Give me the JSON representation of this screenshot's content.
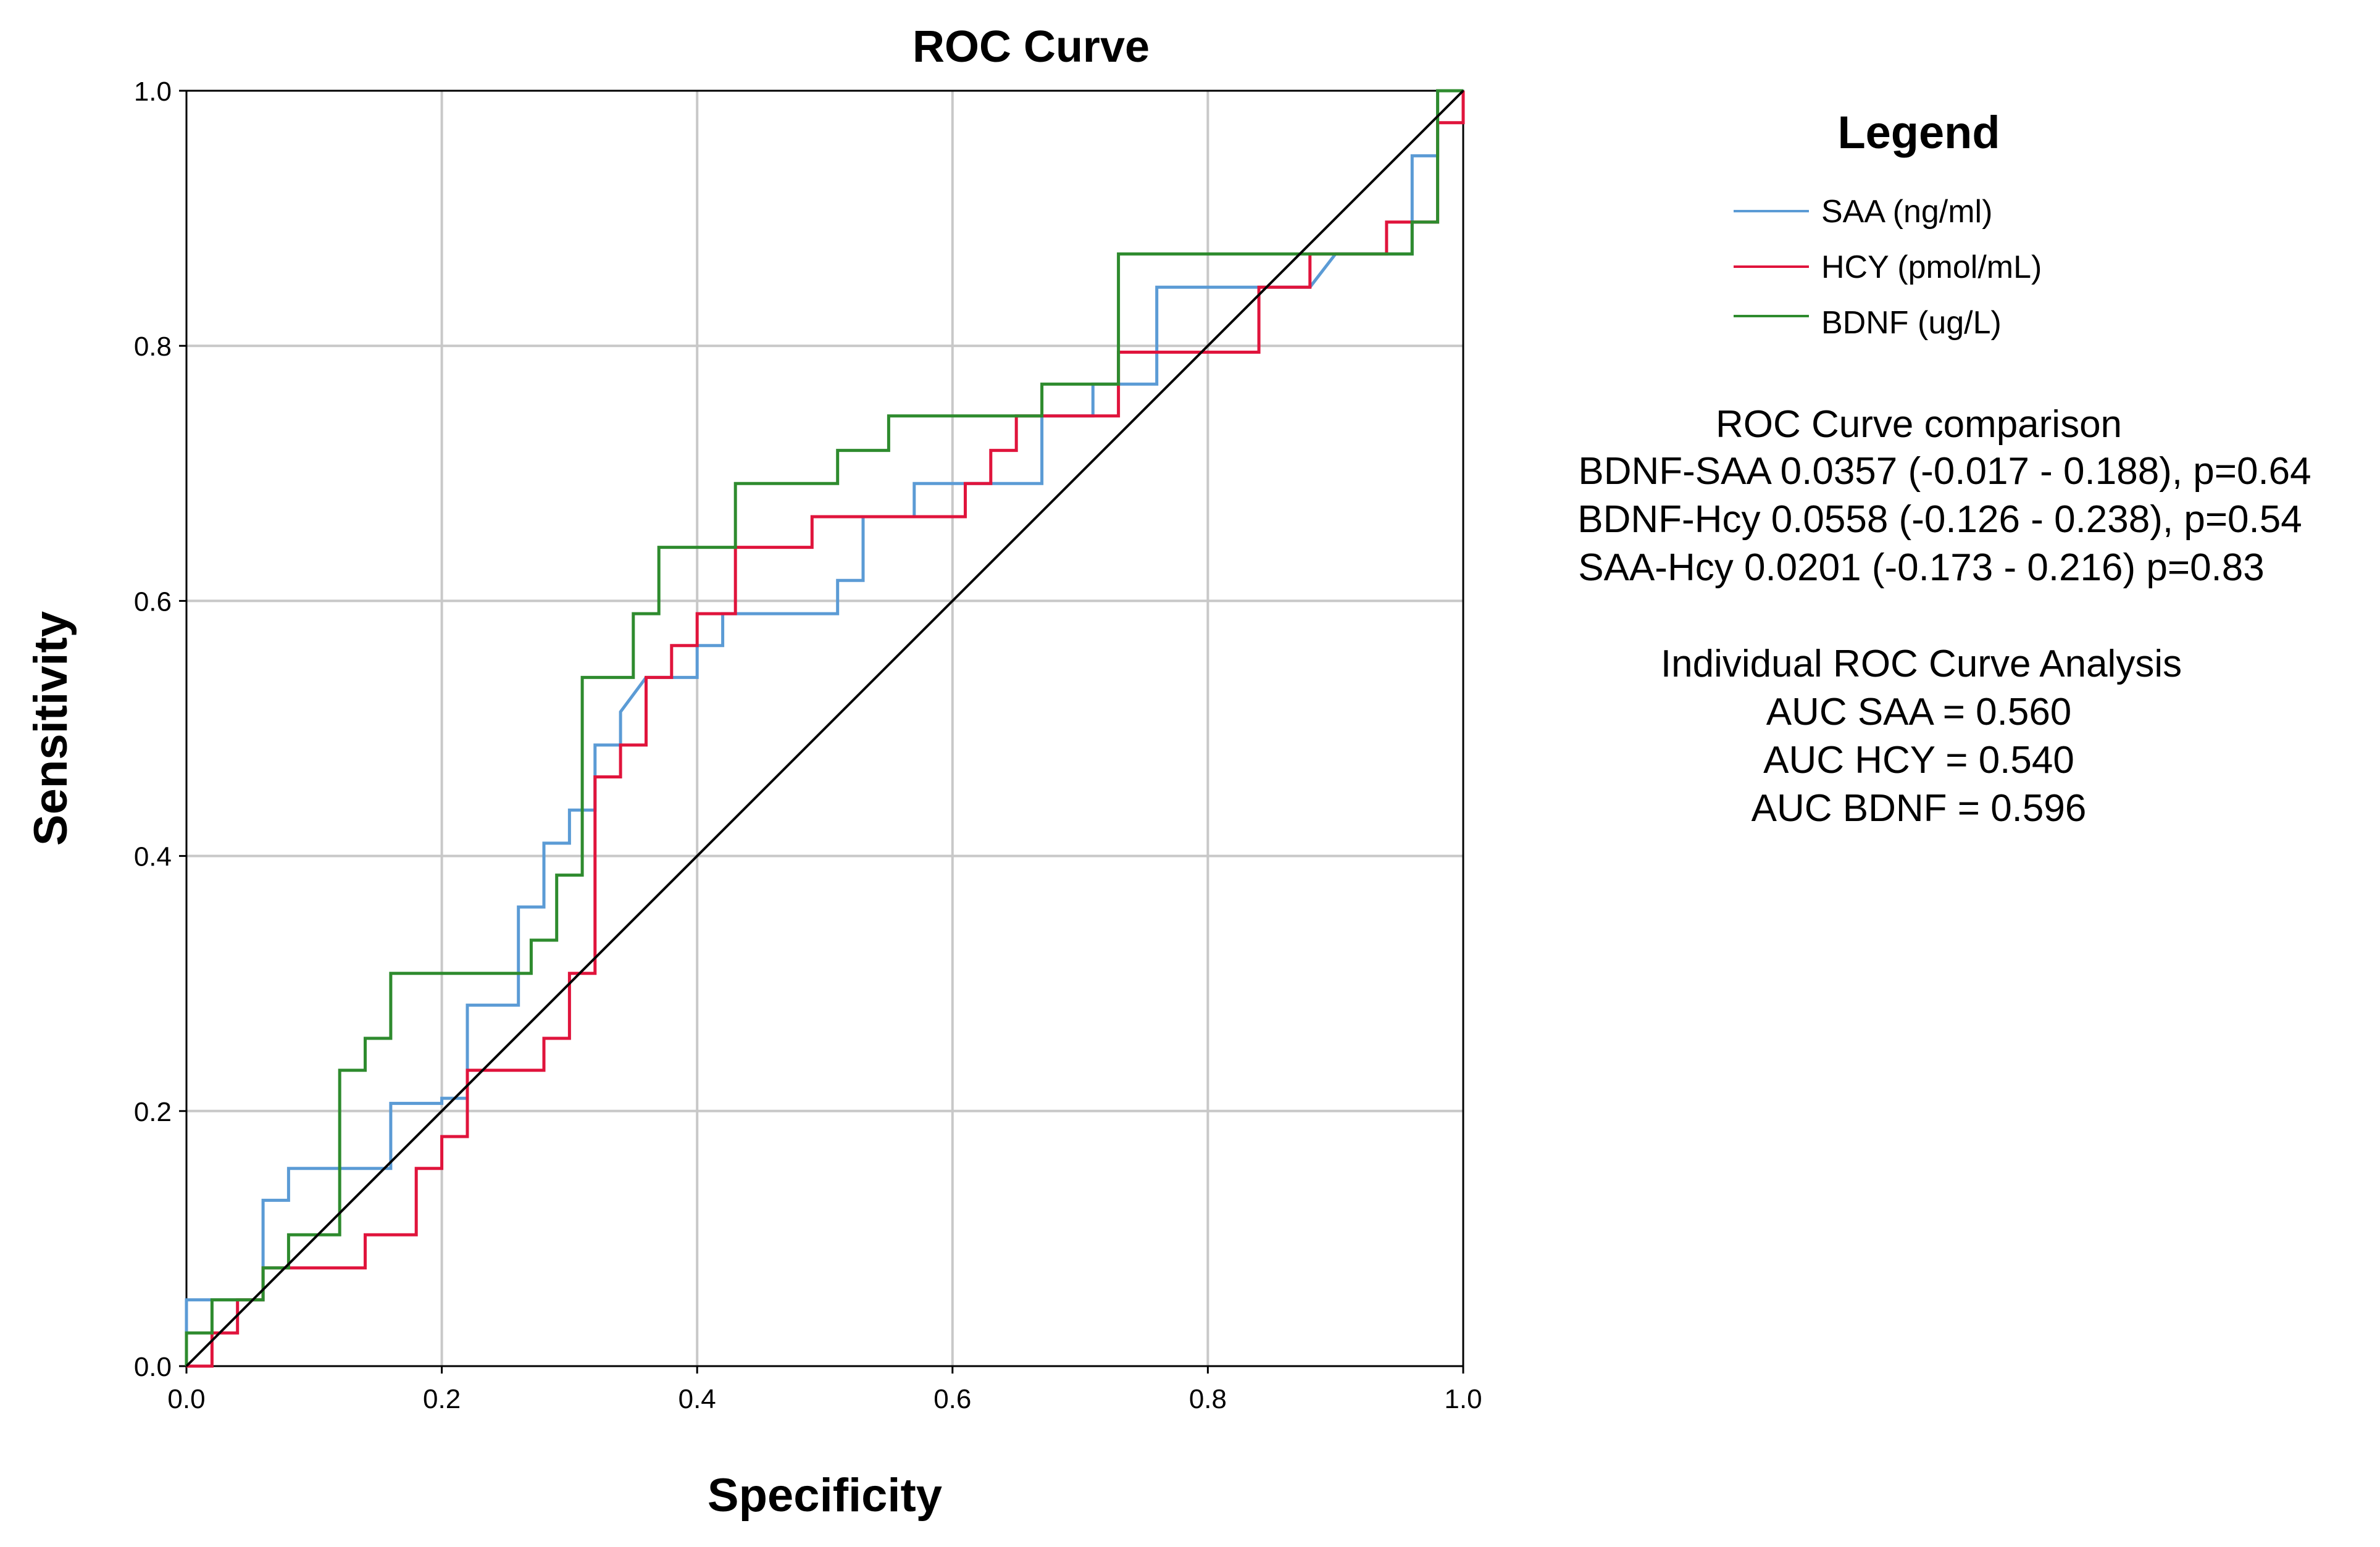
{
  "chart_data": {
    "type": "line",
    "title": "ROC Curve",
    "xlabel": "Specificity",
    "ylabel": "Sensitivity",
    "xlim": [
      0,
      1
    ],
    "ylim": [
      0,
      1
    ],
    "grid": true,
    "x_ticks": [
      "0.0",
      "0.2",
      "0.4",
      "0.6",
      "0.8",
      "1.0"
    ],
    "y_ticks": [
      "0.0",
      "0.2",
      "0.4",
      "0.6",
      "0.8",
      "1.0"
    ],
    "legend": {
      "title": "Legend",
      "placement": "right"
    },
    "series": [
      {
        "name": "SAA (ng/ml)",
        "color": "#5b9bd5",
        "x": [
          0,
          0,
          0.06,
          0.06,
          0.08,
          0.08,
          0.14,
          0.16,
          0.16,
          0.2,
          0.2,
          0.22,
          0.22,
          0.26,
          0.26,
          0.28,
          0.28,
          0.3,
          0.3,
          0.32,
          0.32,
          0.34,
          0.34,
          0.36,
          0.4,
          0.4,
          0.42,
          0.42,
          0.44,
          0.44,
          0.51,
          0.51,
          0.53,
          0.53,
          0.57,
          0.57,
          0.67,
          0.67,
          0.71,
          0.71,
          0.76,
          0.76,
          0.88,
          0.9,
          0.96,
          0.96,
          0.98,
          0.98,
          1.0
        ],
        "y": [
          0,
          0.052,
          0.052,
          0.13,
          0.13,
          0.155,
          0.155,
          0.155,
          0.206,
          0.206,
          0.21,
          0.21,
          0.283,
          0.283,
          0.36,
          0.36,
          0.41,
          0.41,
          0.436,
          0.436,
          0.487,
          0.487,
          0.513,
          0.54,
          0.54,
          0.565,
          0.565,
          0.59,
          0.59,
          0.59,
          0.59,
          0.616,
          0.616,
          0.666,
          0.666,
          0.692,
          0.692,
          0.745,
          0.745,
          0.77,
          0.77,
          0.846,
          0.846,
          0.872,
          0.872,
          0.949,
          0.949,
          1.0,
          1.0
        ]
      },
      {
        "name": "HCY (pmol/mL)",
        "color": "#e0143c",
        "x": [
          0,
          0.02,
          0.02,
          0.04,
          0.04,
          0.06,
          0.06,
          0.08,
          0.08,
          0.14,
          0.14,
          0.18,
          0.18,
          0.2,
          0.2,
          0.22,
          0.22,
          0.28,
          0.28,
          0.3,
          0.3,
          0.32,
          0.32,
          0.34,
          0.34,
          0.36,
          0.36,
          0.38,
          0.38,
          0.4,
          0.4,
          0.43,
          0.43,
          0.49,
          0.49,
          0.61,
          0.61,
          0.63,
          0.63,
          0.65,
          0.65,
          0.73,
          0.73,
          0.84,
          0.84,
          0.88,
          0.88,
          0.94,
          0.94,
          0.98,
          0.98,
          1.0,
          1.0
        ],
        "y": [
          0,
          0,
          0.026,
          0.026,
          0.052,
          0.052,
          0.077,
          0.077,
          0.077,
          0.077,
          0.103,
          0.103,
          0.155,
          0.155,
          0.18,
          0.18,
          0.232,
          0.232,
          0.257,
          0.257,
          0.308,
          0.308,
          0.462,
          0.462,
          0.487,
          0.487,
          0.54,
          0.54,
          0.565,
          0.565,
          0.59,
          0.59,
          0.642,
          0.642,
          0.666,
          0.666,
          0.692,
          0.692,
          0.718,
          0.718,
          0.745,
          0.745,
          0.795,
          0.795,
          0.846,
          0.846,
          0.872,
          0.872,
          0.897,
          0.897,
          0.975,
          0.975,
          1.0
        ]
      },
      {
        "name": "BDNF (ug/L)",
        "color": "#2e8b2e",
        "x": [
          0,
          0,
          0.02,
          0.02,
          0.06,
          0.06,
          0.08,
          0.08,
          0.12,
          0.12,
          0.14,
          0.14,
          0.16,
          0.16,
          0.27,
          0.27,
          0.29,
          0.29,
          0.31,
          0.31,
          0.35,
          0.35,
          0.37,
          0.37,
          0.43,
          0.43,
          0.51,
          0.51,
          0.55,
          0.55,
          0.67,
          0.67,
          0.73,
          0.73,
          0.96,
          0.96,
          0.98,
          0.98,
          1.0
        ],
        "y": [
          0,
          0.026,
          0.026,
          0.052,
          0.052,
          0.077,
          0.077,
          0.103,
          0.103,
          0.232,
          0.232,
          0.257,
          0.257,
          0.308,
          0.308,
          0.334,
          0.334,
          0.385,
          0.385,
          0.54,
          0.54,
          0.59,
          0.59,
          0.642,
          0.642,
          0.692,
          0.692,
          0.718,
          0.718,
          0.745,
          0.745,
          0.77,
          0.77,
          0.872,
          0.872,
          0.897,
          0.897,
          1.0,
          1.0
        ]
      },
      {
        "name": "Reference line",
        "color": "#000000",
        "x": [
          0,
          1
        ],
        "y": [
          0,
          1
        ]
      }
    ],
    "annotations": {
      "comparison_title": "ROC Curve comparison",
      "comparison_lines": [
        "BDNF-SAA 0.0357 (-0.017 - 0.188), p=0.64",
        "BDNF-Hcy 0.0558 (-0.126 - 0.238), p=0.54",
        "SAA-Hcy 0.0201 (-0.173 - 0.216) p=0.83"
      ],
      "individual_title": "Individual ROC Curve Analysis",
      "individual_lines": [
        "AUC SAA = 0.560",
        "AUC HCY = 0.540",
        "AUC BDNF = 0.596"
      ]
    }
  }
}
